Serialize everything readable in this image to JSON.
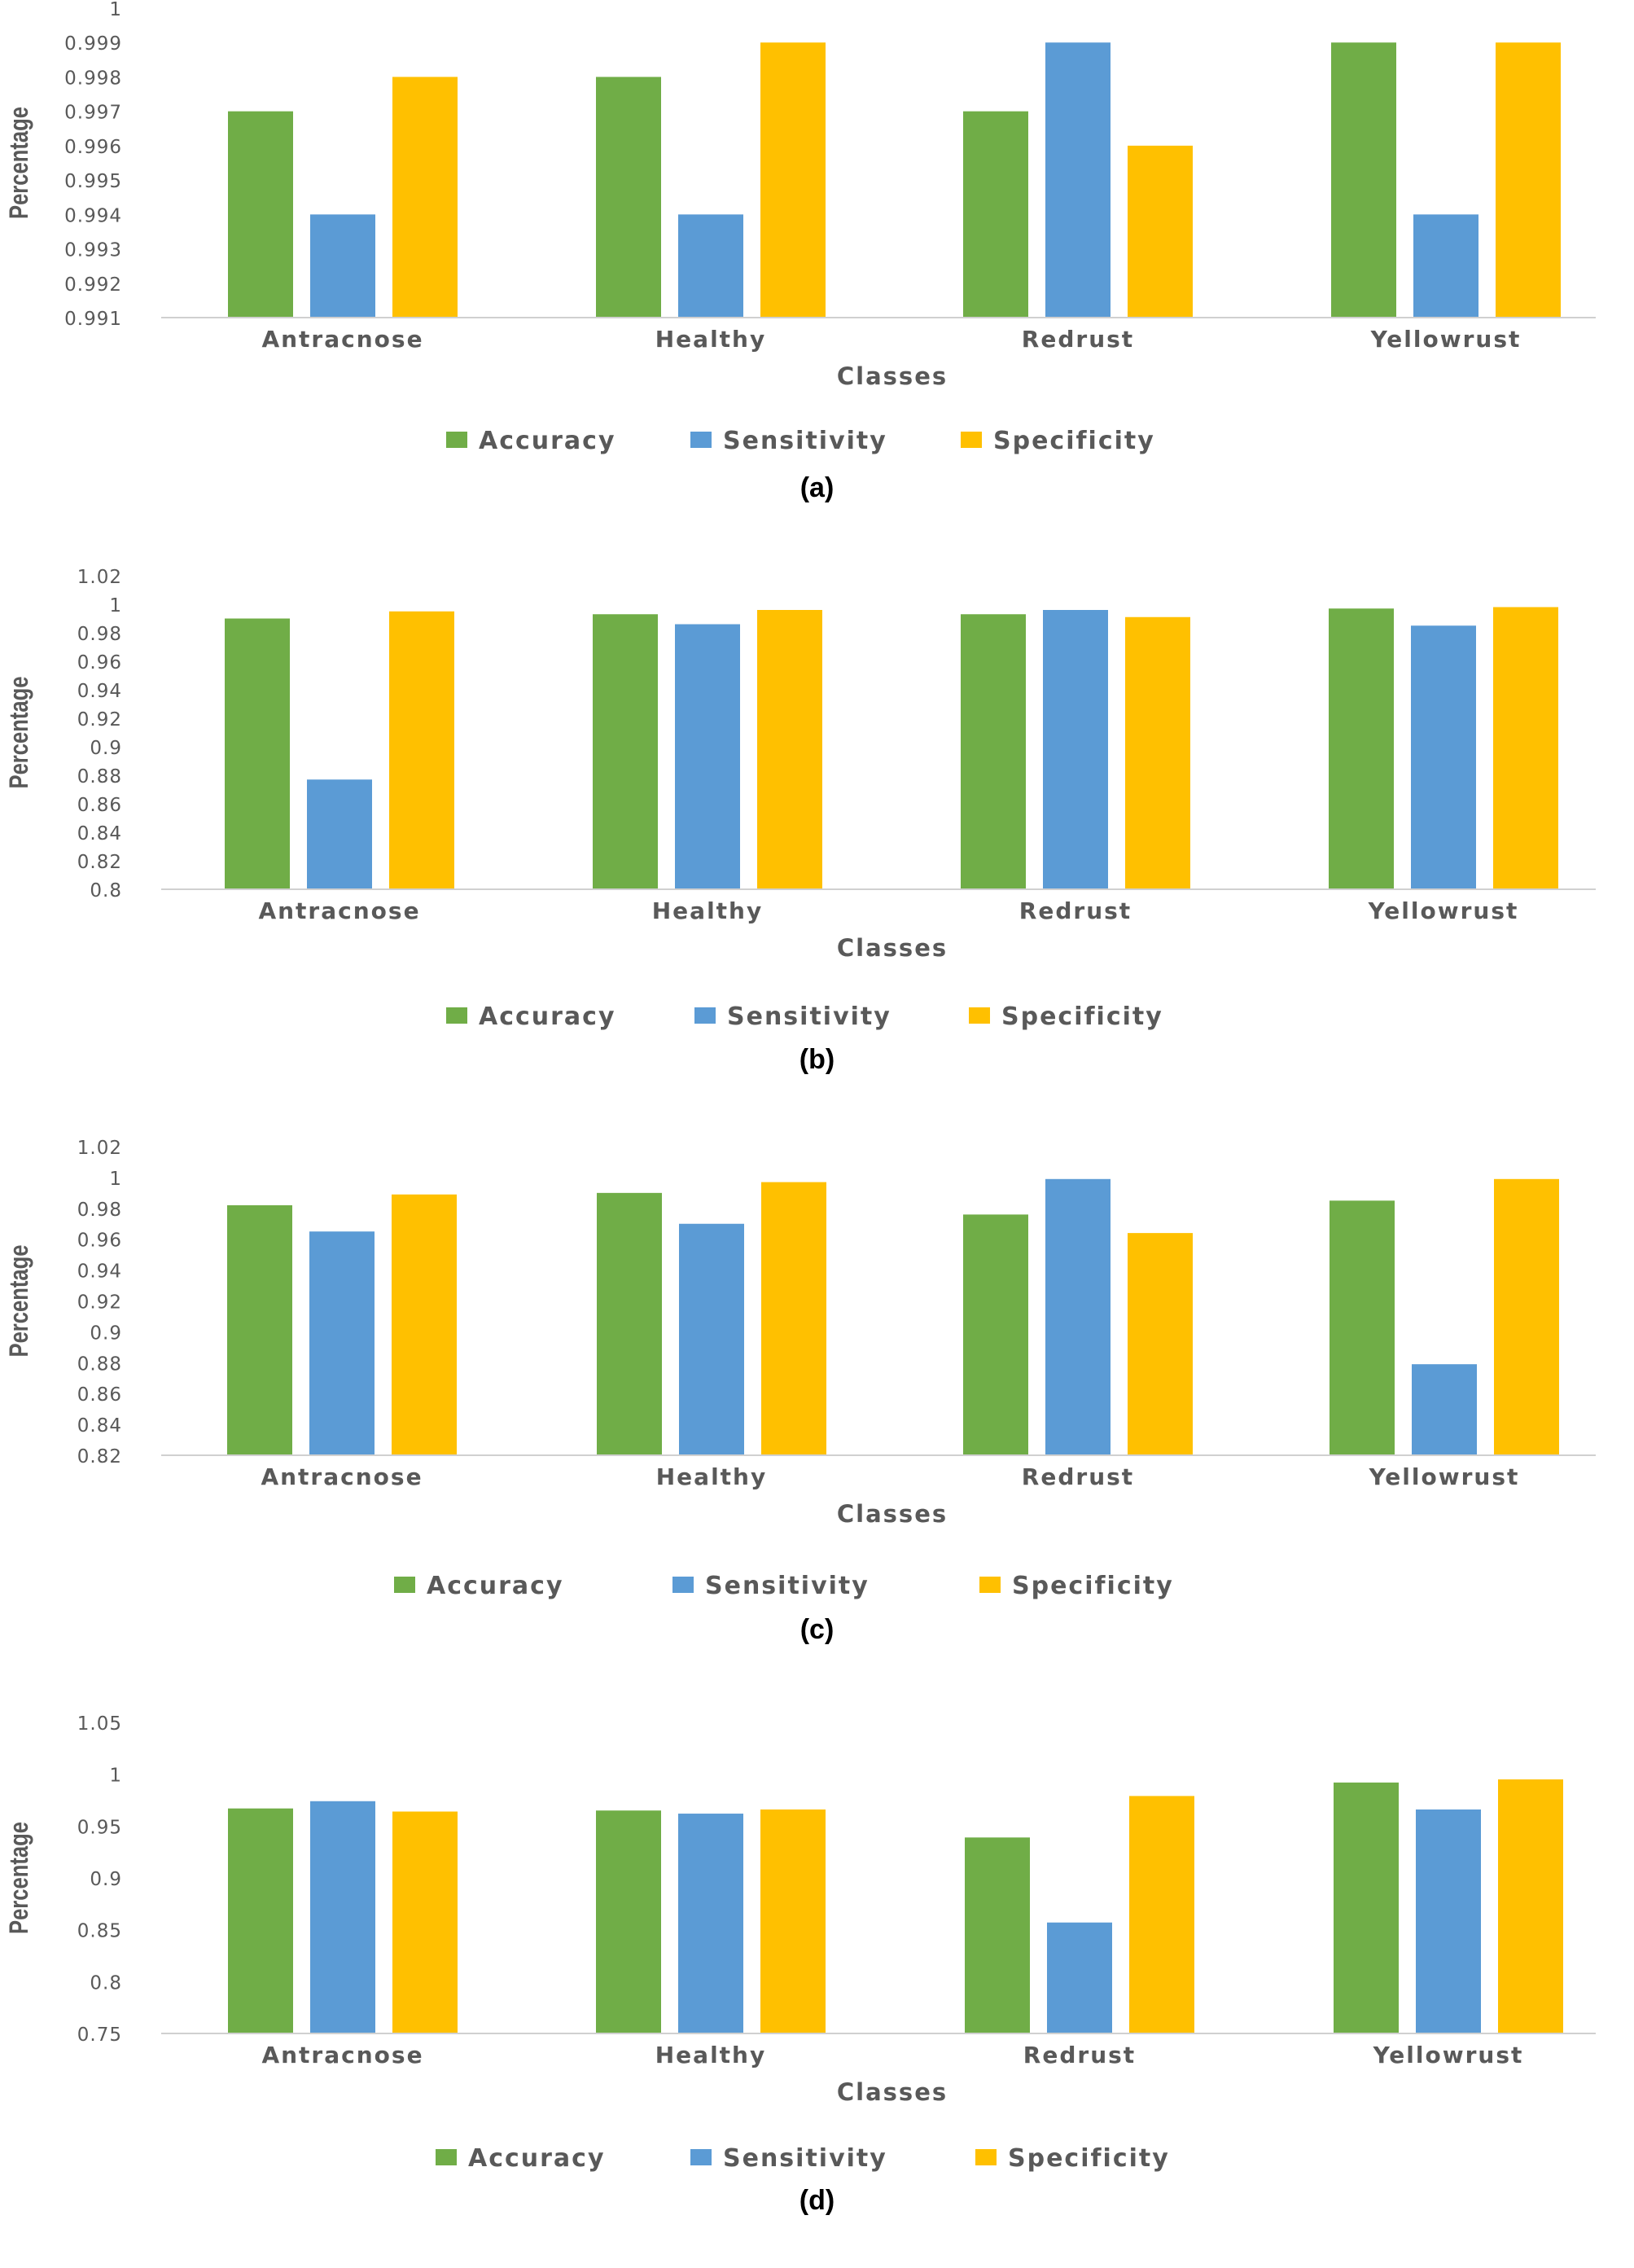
{
  "chart_data": [
    {
      "type": "bar",
      "caption": "(a)",
      "ylabel": "Percentage",
      "xlabel": "Classes",
      "categories": [
        "Antracnose",
        "Healthy",
        "Redrust",
        "Yellowrust"
      ],
      "series": [
        {
          "name": "Accuracy",
          "values": [
            0.997,
            0.998,
            0.997,
            0.999
          ]
        },
        {
          "name": "Sensitivity",
          "values": [
            0.994,
            0.994,
            0.999,
            0.994
          ]
        },
        {
          "name": "Specificity",
          "values": [
            0.998,
            0.999,
            0.996,
            0.999
          ]
        }
      ],
      "ylim": [
        0.991,
        1
      ],
      "yticks": [
        "0.991",
        "0.992",
        "0.993",
        "0.994",
        "0.995",
        "0.996",
        "0.997",
        "0.998",
        "0.999",
        "1"
      ],
      "legend": "bottom"
    },
    {
      "type": "bar",
      "caption": "(b)",
      "ylabel": "Percentage",
      "xlabel": "Classes",
      "categories": [
        "Antracnose",
        "Healthy",
        "Redrust",
        "Yellowrust"
      ],
      "series": [
        {
          "name": "Accuracy",
          "values": [
            0.99,
            0.993,
            0.993,
            0.997
          ]
        },
        {
          "name": "Sensitivity",
          "values": [
            0.877,
            0.986,
            0.996,
            0.985
          ]
        },
        {
          "name": "Specificity",
          "values": [
            0.995,
            0.996,
            0.991,
            0.998
          ]
        }
      ],
      "ylim": [
        0.8,
        1.02
      ],
      "yticks": [
        "0.8",
        "0.82",
        "0.84",
        "0.86",
        "0.88",
        "0.9",
        "0.92",
        "0.94",
        "0.96",
        "0.98",
        "1",
        "1.02"
      ],
      "legend": "bottom"
    },
    {
      "type": "bar",
      "caption": "(c)",
      "ylabel": "Percentage",
      "xlabel": "Classes",
      "categories": [
        "Antracnose",
        "Healthy",
        "Redrust",
        "Yellowrust"
      ],
      "series": [
        {
          "name": "Accuracy",
          "values": [
            0.982,
            0.99,
            0.976,
            0.985
          ]
        },
        {
          "name": "Sensitivity",
          "values": [
            0.965,
            0.97,
            0.999,
            0.879
          ]
        },
        {
          "name": "Specificity",
          "values": [
            0.989,
            0.997,
            0.964,
            0.999
          ]
        }
      ],
      "ylim": [
        0.82,
        1.02
      ],
      "yticks": [
        "0.82",
        "0.84",
        "0.86",
        "0.88",
        "0.9",
        "0.92",
        "0.94",
        "0.96",
        "0.98",
        "1",
        "1.02"
      ],
      "legend": "bottom"
    },
    {
      "type": "bar",
      "caption": "(d)",
      "ylabel": "Percentage",
      "xlabel": "Classes",
      "categories": [
        "Antracnose",
        "Healthy",
        "Redrust",
        "Yellowrust"
      ],
      "series": [
        {
          "name": "Accuracy",
          "values": [
            0.967,
            0.965,
            0.939,
            0.992
          ]
        },
        {
          "name": "Sensitivity",
          "values": [
            0.974,
            0.962,
            0.857,
            0.966
          ]
        },
        {
          "name": "Specificity",
          "values": [
            0.964,
            0.966,
            0.979,
            0.995
          ]
        }
      ],
      "ylim": [
        0.75,
        1.05
      ],
      "yticks": [
        "0.75",
        "0.8",
        "0.85",
        "0.9",
        "0.95",
        "1",
        "1.05"
      ],
      "legend": "bottom"
    }
  ],
  "colors": {
    "accuracy": "#70AD47",
    "sensitivity": "#5B9BD5",
    "specificity": "#FFC000",
    "axis": "#d0d0d0",
    "text": "#595959"
  }
}
